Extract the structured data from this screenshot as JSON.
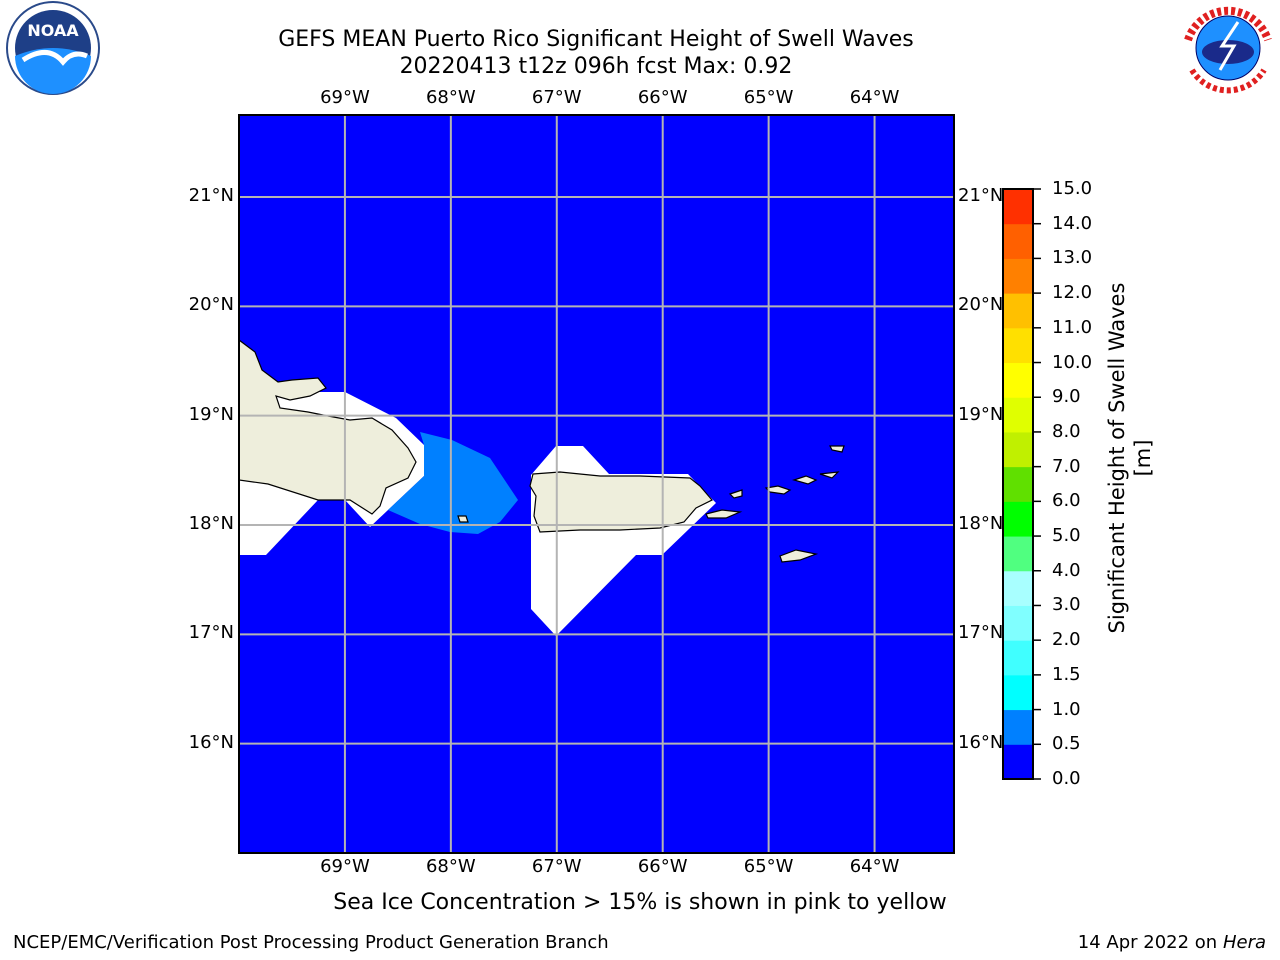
{
  "title": {
    "line1": "GEFS MEAN Puerto Rico Significant Height of Swell Waves",
    "line2": "20220413 t12z 096h fcst   Max: 0.92"
  },
  "map": {
    "lon_labels": [
      "69°W",
      "68°W",
      "67°W",
      "66°W",
      "65°W",
      "64°W"
    ],
    "lat_labels": [
      "21°N",
      "20°N",
      "19°N",
      "18°N",
      "17°N",
      "16°N"
    ],
    "lon_values": [
      -69,
      -68,
      -67,
      -66,
      -65,
      -64
    ],
    "lat_values": [
      21,
      20,
      19,
      18,
      17,
      16
    ],
    "lon_range": [
      -70,
      -63.25
    ],
    "lat_range": [
      15,
      21.75
    ],
    "ocean_color": "#0000ff",
    "land_color": "#eeeedc",
    "nodata_color": "#ffffff",
    "grid": true
  },
  "colorbar": {
    "label": "Significant Height of Swell Waves [m]",
    "ticks": [
      "0.0",
      "0.5",
      "1.0",
      "1.5",
      "2.0",
      "3.0",
      "4.0",
      "5.0",
      "6.0",
      "7.0",
      "8.0",
      "9.0",
      "10.0",
      "11.0",
      "12.0",
      "13.0",
      "14.0",
      "15.0"
    ],
    "colors": [
      "#0000ff",
      "#0080ff",
      "#00ffff",
      "#40ffff",
      "#80ffff",
      "#a8ffff",
      "#50ff80",
      "#00ff00",
      "#60e000",
      "#c0f000",
      "#e0ff00",
      "#ffff00",
      "#ffe000",
      "#ffc000",
      "#ff8000",
      "#ff6000",
      "#ff3000",
      "#ff0000"
    ]
  },
  "logos": {
    "left": "noaa-logo",
    "right": "nws-logo"
  },
  "footer": {
    "note": "Sea Ice Concentration > 15% is shown in pink to yellow",
    "left": "NCEP/EMC/Verification Post Processing Product Generation Branch",
    "right_date": "14 Apr 2022 on",
    "right_host": "Hera"
  }
}
